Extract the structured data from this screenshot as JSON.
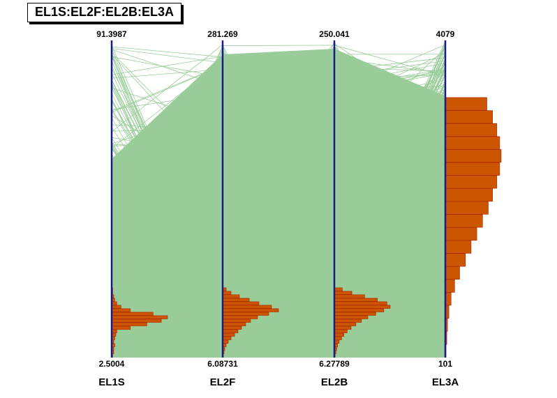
{
  "title": "EL1S:EL2F:EL2B:EL3A",
  "chart_data": {
    "type": "parallel-coordinates",
    "title": "EL1S:EL2F:EL2B:EL3A",
    "grid": false,
    "axes": [
      {
        "name": "EL1S",
        "max": 91.3987,
        "min": 2.5004,
        "max_label": "91.3987",
        "min_label": "2.5004",
        "hist": [
          1,
          2,
          2,
          3,
          2,
          3,
          4,
          5,
          18,
          34,
          48,
          54,
          40,
          18,
          9,
          5,
          3,
          2,
          1,
          1
        ]
      },
      {
        "name": "EL2F",
        "max": 281.269,
        "min": 6.08731,
        "max_label": "281.269",
        "min_label": "6.08731",
        "hist": [
          1,
          2,
          3,
          5,
          8,
          12,
          17,
          22,
          27,
          33,
          40,
          50,
          66,
          80,
          70,
          52,
          38,
          24,
          12,
          5
        ]
      },
      {
        "name": "EL2B",
        "max": 250.041,
        "min": 6.27789,
        "max_label": "250.041",
        "min_label": "6.27789",
        "hist": [
          1,
          2,
          3,
          4,
          6,
          9,
          12,
          16,
          21,
          27,
          34,
          42,
          52,
          62,
          70,
          66,
          54,
          38,
          22,
          10
        ]
      },
      {
        "name": "EL3A",
        "max": 4079,
        "min": 101,
        "max_label": "4079",
        "min_label": "101",
        "hist": [
          1,
          2,
          3,
          5,
          8,
          13,
          20,
          28,
          36,
          44,
          52,
          60,
          66,
          72,
          76,
          78,
          76,
          72,
          66,
          58
        ]
      }
    ],
    "histogram_bins": 20,
    "colors": {
      "lines": "#99cc99",
      "axis": "#1a1a8c",
      "histogram_fill": "#cc5500",
      "histogram_edge": "#aa2200"
    }
  }
}
